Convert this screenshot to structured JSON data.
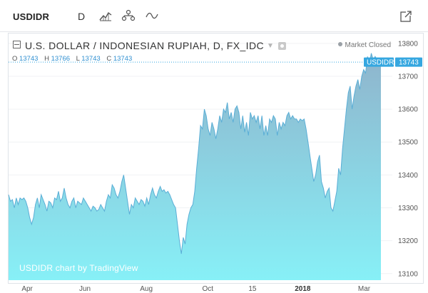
{
  "toolbar": {
    "symbol": "USDIDR",
    "interval": "D",
    "icons": [
      "area-chart-icon",
      "compare-icon",
      "indicators-icon",
      "popout-icon"
    ]
  },
  "legend": {
    "title": "U.S. DOLLAR / INDONESIAN RUPIAH, D, FX_IDC",
    "ohlc": {
      "o_label": "O",
      "o": "13743",
      "h_label": "H",
      "h": "13766",
      "l_label": "L",
      "l": "13743",
      "c_label": "C",
      "c": "13743"
    }
  },
  "market_status": "Market Closed",
  "watermark": "USDIDR chart by TradingView",
  "price_tag": {
    "symbol": "USDIDR",
    "value": "13743"
  },
  "colors": {
    "area_top": "#8fb4cc",
    "area_bottom": "#87f0f7",
    "line": "#5aaed6",
    "tag": "#35a7e0"
  },
  "chart_data": {
    "type": "area",
    "ylim": [
      13080,
      13830
    ],
    "y_ticks": [
      13100,
      13200,
      13300,
      13400,
      13500,
      13600,
      13700,
      13800
    ],
    "x_ticks": [
      {
        "label": "Apr",
        "t": 0.05,
        "bold": false
      },
      {
        "label": "Jun",
        "t": 0.205,
        "bold": false
      },
      {
        "label": "Aug",
        "t": 0.37,
        "bold": false
      },
      {
        "label": "Oct",
        "t": 0.535,
        "bold": false
      },
      {
        "label": "15",
        "t": 0.655,
        "bold": false
      },
      {
        "label": "2018",
        "t": 0.79,
        "bold": true
      },
      {
        "label": "Mar",
        "t": 0.955,
        "bold": false
      }
    ],
    "series": [
      {
        "values": [
          13340,
          13320,
          13325,
          13300,
          13330,
          13310,
          13330,
          13325,
          13330,
          13320,
          13300,
          13270,
          13250,
          13270,
          13310,
          13330,
          13300,
          13340,
          13325,
          13310,
          13290,
          13320,
          13315,
          13300,
          13330,
          13325,
          13350,
          13320,
          13330,
          13360,
          13330,
          13310,
          13300,
          13320,
          13330,
          13300,
          13320,
          13315,
          13310,
          13330,
          13320,
          13310,
          13300,
          13290,
          13305,
          13300,
          13290,
          13295,
          13310,
          13300,
          13290,
          13320,
          13340,
          13330,
          13370,
          13360,
          13340,
          13330,
          13350,
          13380,
          13400,
          13360,
          13320,
          13280,
          13310,
          13300,
          13330,
          13320,
          13310,
          13325,
          13320,
          13305,
          13330,
          13310,
          13340,
          13360,
          13340,
          13330,
          13350,
          13365,
          13350,
          13355,
          13345,
          13350,
          13340,
          13325,
          13310,
          13300,
          13250,
          13200,
          13160,
          13210,
          13190,
          13250,
          13280,
          13300,
          13310,
          13350,
          13420,
          13480,
          13550,
          13540,
          13600,
          13580,
          13540,
          13520,
          13560,
          13540,
          13510,
          13540,
          13580,
          13560,
          13600,
          13590,
          13620,
          13570,
          13590,
          13560,
          13600,
          13610,
          13590,
          13540,
          13580,
          13530,
          13560,
          13520,
          13590,
          13570,
          13580,
          13560,
          13580,
          13540,
          13580,
          13520,
          13550,
          13520,
          13570,
          13560,
          13580,
          13570,
          13520,
          13560,
          13540,
          13560,
          13550,
          13580,
          13590,
          13570,
          13580,
          13570,
          13570,
          13560,
          13570,
          13565,
          13570,
          13540,
          13500,
          13460,
          13420,
          13380,
          13400,
          13440,
          13460,
          13380,
          13360,
          13330,
          13350,
          13360,
          13300,
          13290,
          13320,
          13350,
          13420,
          13400,
          13480,
          13540,
          13600,
          13650,
          13670,
          13600,
          13640,
          13670,
          13690,
          13660,
          13700,
          13720,
          13710,
          13760,
          13740,
          13770,
          13750,
          13760,
          13750,
          13745,
          13743
        ]
      }
    ]
  }
}
